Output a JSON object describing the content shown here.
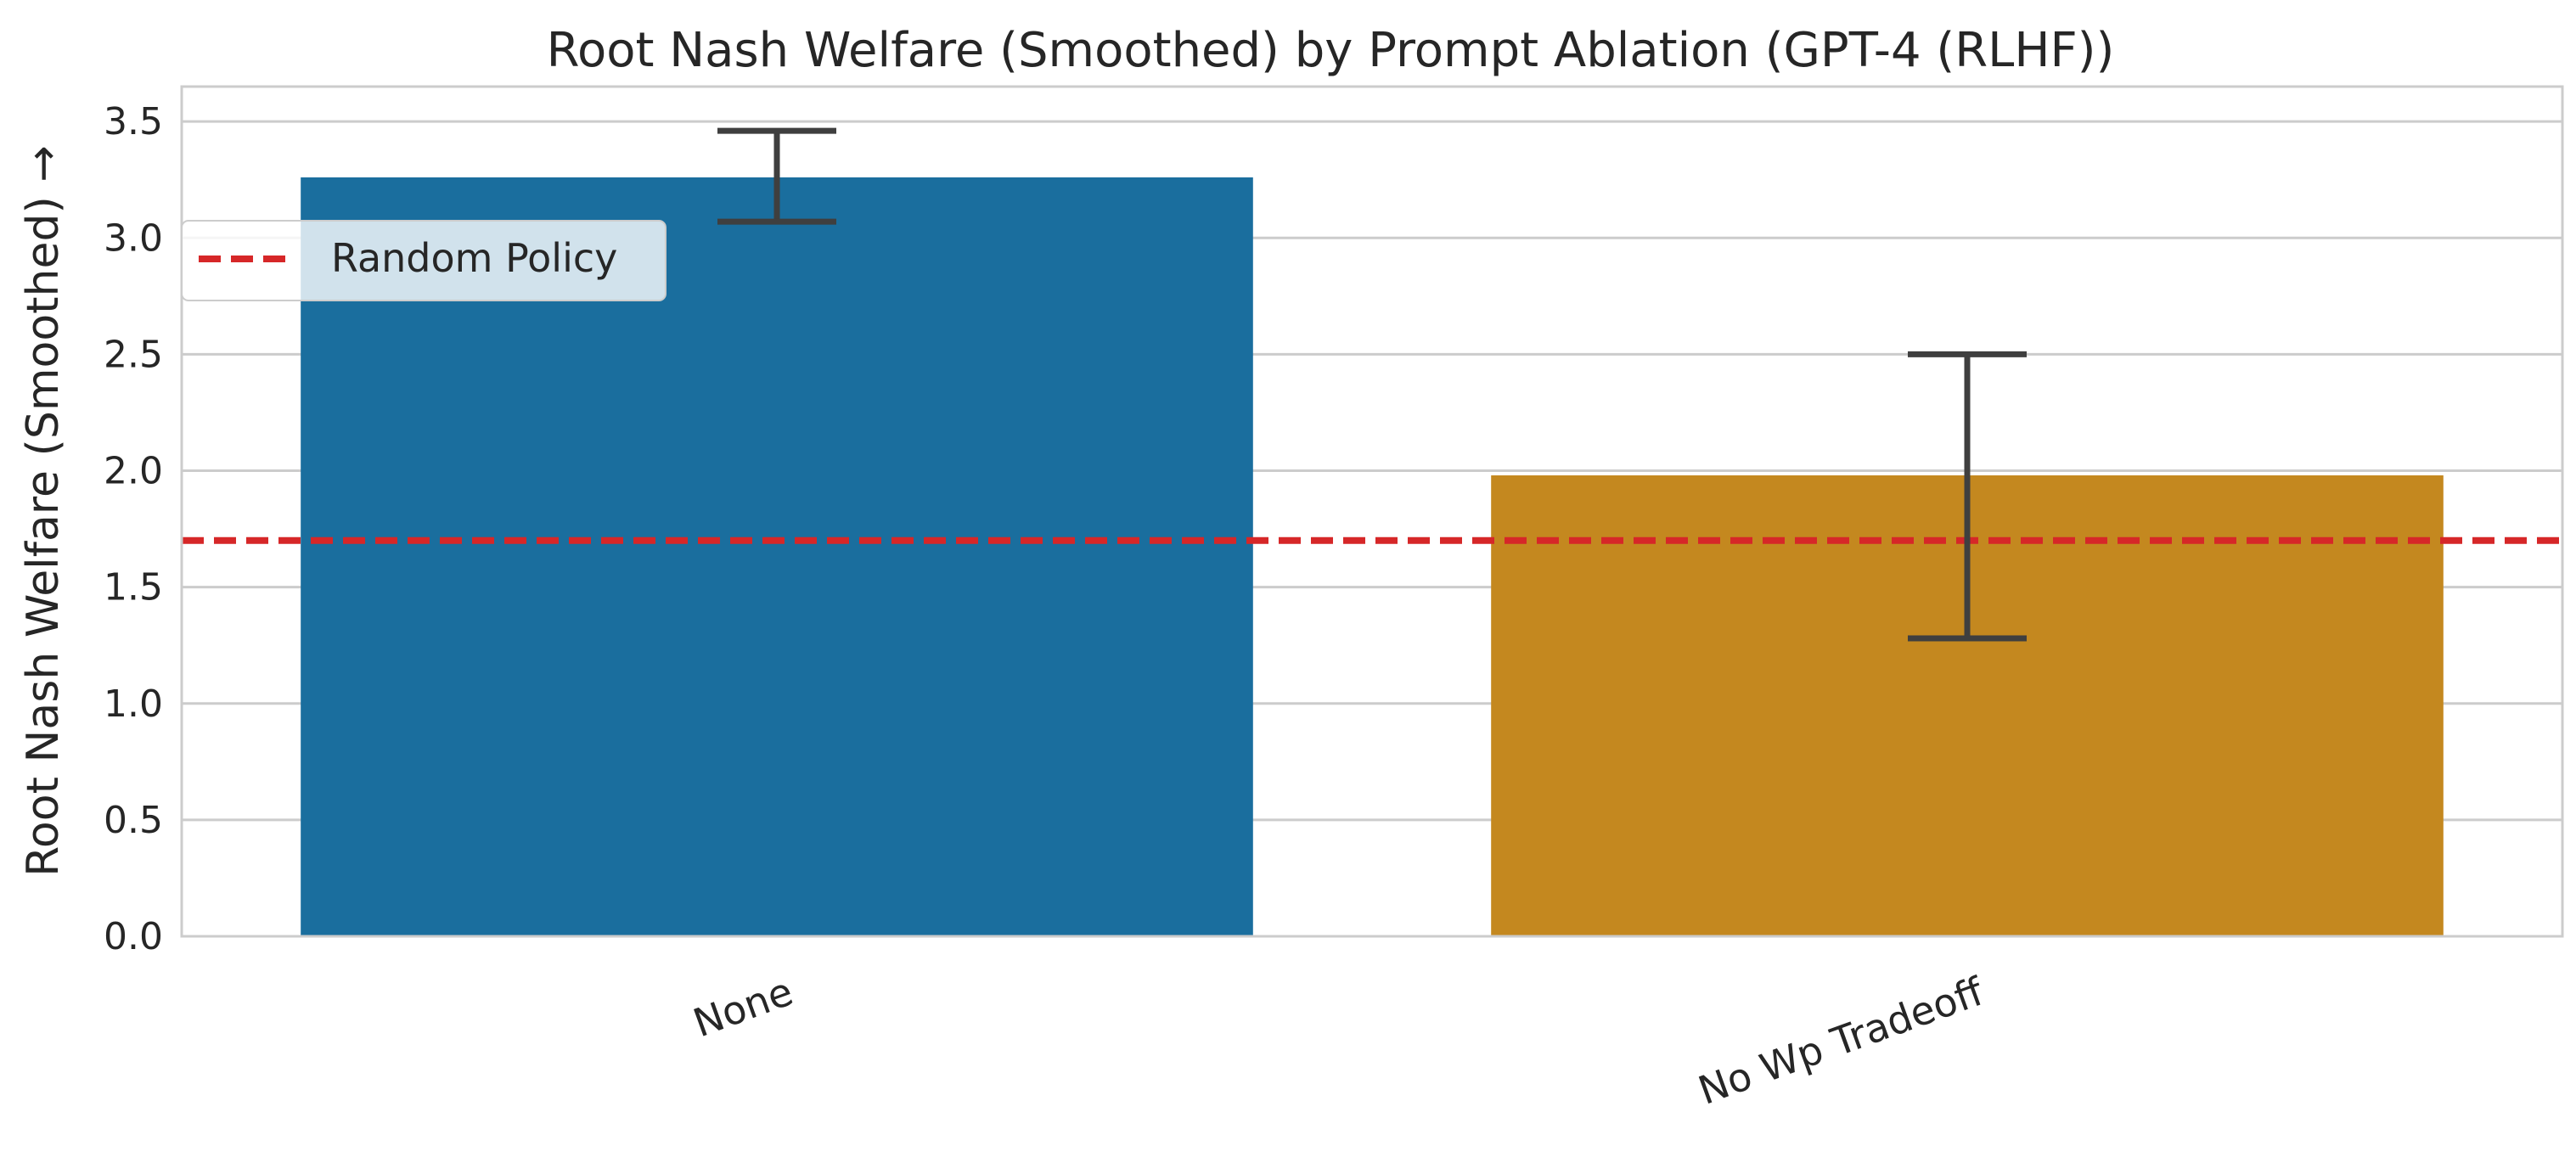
{
  "chart_data": {
    "type": "bar",
    "title": "Root Nash Welfare (Smoothed) by Prompt Ablation (GPT-4 (RLHF))",
    "xlabel": "",
    "ylabel": "Root Nash Welfare (Smoothed) →",
    "categories": [
      "None",
      "No Wp Tradeoff"
    ],
    "values": [
      3.26,
      1.98
    ],
    "error_bars": [
      {
        "low": 3.07,
        "high": 3.46
      },
      {
        "low": 1.28,
        "high": 2.5
      }
    ],
    "bar_colors": [
      "#1a6e9e",
      "#c4881f"
    ],
    "ylim": [
      0,
      3.65
    ],
    "yticks": [
      "0.0",
      "0.5",
      "1.0",
      "1.5",
      "2.0",
      "2.5",
      "3.0",
      "3.5"
    ],
    "grid": true,
    "reference_line": {
      "label": "Random Policy",
      "value": 1.7,
      "color": "#d62728",
      "style": "dashed"
    },
    "legend": {
      "placement": "upper-left",
      "entries": [
        "Random Policy"
      ]
    }
  }
}
